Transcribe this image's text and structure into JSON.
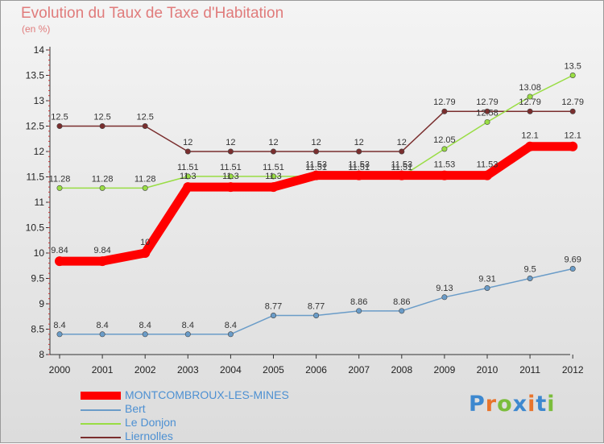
{
  "chart_data": {
    "type": "line",
    "title": "Evolution du Taux de Taxe d'Habitation",
    "subtitle": "(en %)",
    "x": [
      "2000",
      "2001",
      "2002",
      "2003",
      "2004",
      "2005",
      "2006",
      "2007",
      "2008",
      "2009",
      "2010",
      "2011",
      "2012"
    ],
    "ylim": [
      8,
      14
    ],
    "yticks": [
      "8",
      "8.5",
      "9",
      "9.5",
      "10",
      "10.5",
      "11",
      "11.5",
      "12",
      "12.5",
      "13",
      "13.5",
      "14"
    ],
    "grid": false,
    "legend_position": "bottom-left",
    "series": [
      {
        "name": "MONTCOMBROUX-LES-MINES",
        "color": "#ff0000",
        "emphasis": true,
        "values": [
          9.84,
          9.84,
          10,
          11.3,
          11.3,
          11.3,
          11.53,
          11.53,
          11.53,
          11.53,
          11.53,
          12.1,
          12.1
        ],
        "labels": [
          "9.84",
          "9.84",
          "10",
          "11.3",
          "11.3",
          "11.3",
          "11.53",
          "11.53",
          "11.53",
          "11.53",
          "11.53",
          "12.1",
          "12.1"
        ]
      },
      {
        "name": "Bert",
        "color": "#6a9cc8",
        "values": [
          8.4,
          8.4,
          8.4,
          8.4,
          8.4,
          8.77,
          8.77,
          8.86,
          8.86,
          9.13,
          9.31,
          9.5,
          9.69
        ],
        "labels": [
          "8.4",
          "8.4",
          "8.4",
          "8.4",
          "8.4",
          "8.77",
          "8.77",
          "8.86",
          "8.86",
          "9.13",
          "9.31",
          "9.5",
          "9.69"
        ]
      },
      {
        "name": "Le Donjon",
        "color": "#99dd44",
        "values": [
          11.28,
          11.28,
          11.28,
          11.51,
          11.51,
          11.51,
          11.51,
          11.51,
          11.51,
          12.05,
          12.58,
          13.08,
          13.5
        ],
        "labels": [
          "11.28",
          "11.28",
          "11.28",
          "11.51",
          "11.51",
          "11.51",
          "11.51",
          "11.51",
          "11.51",
          "12.05",
          "12.58",
          "13.08",
          "13.5"
        ]
      },
      {
        "name": "Liernolles",
        "color": "#7a2e2e",
        "values": [
          12.5,
          12.5,
          12.5,
          12,
          12,
          12,
          12,
          12,
          12,
          12.79,
          12.79,
          12.79,
          12.79
        ],
        "labels": [
          "12.5",
          "12.5",
          "12.5",
          "12",
          "12",
          "12",
          "12",
          "12",
          "12",
          "12.79",
          "12.79",
          "12.79",
          "12.79"
        ]
      }
    ]
  },
  "logo": {
    "letters": [
      "P",
      "r",
      "o",
      "x",
      "i",
      "t",
      "i"
    ],
    "colors": [
      "#3d88cf",
      "#e8742c",
      "#7bbd3c",
      "#3d88cf",
      "#e8742c",
      "#3d88cf",
      "#7bbd3c"
    ]
  }
}
